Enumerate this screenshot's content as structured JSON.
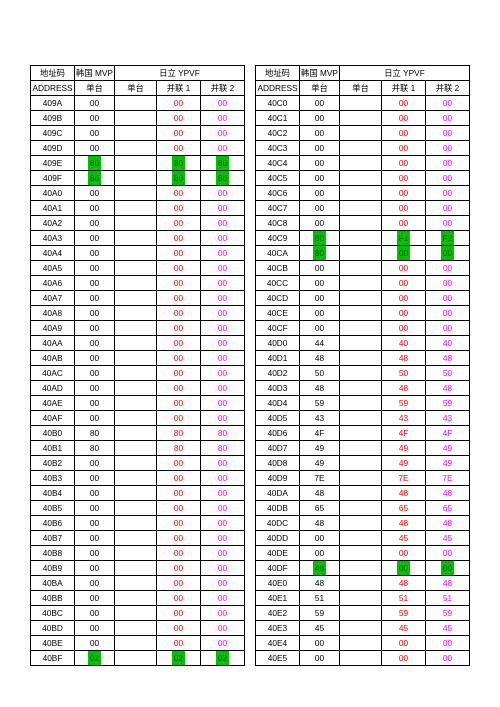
{
  "header": {
    "addr_code": "地址码",
    "address": "ADDRESS",
    "mvp_brand": "韩国 MVP",
    "mvp_col": "单台",
    "ypvf_brand": "日立 YPVF",
    "ypvf_col1": "单台",
    "ypvf_col2": "并联 1",
    "ypvf_col3": "并联 2"
  },
  "colors": {
    "red": "#ff0000",
    "magenta": "#ff00ff",
    "green_bg": "#00c000",
    "green_text": "#006000"
  },
  "left": [
    {
      "addr": "409A",
      "mvp": "00",
      "b1": {
        "t": "00",
        "c": "red"
      },
      "b2": {
        "t": "00",
        "c": "magenta"
      }
    },
    {
      "addr": "409B",
      "mvp": "00",
      "b1": {
        "t": "00",
        "c": "red"
      },
      "b2": {
        "t": "00",
        "c": "magenta"
      }
    },
    {
      "addr": "409C",
      "mvp": "00",
      "b1": {
        "t": "00",
        "c": "red"
      },
      "b2": {
        "t": "00",
        "c": "magenta"
      }
    },
    {
      "addr": "409D",
      "mvp": "00",
      "b1": {
        "t": "00",
        "c": "red"
      },
      "b2": {
        "t": "00",
        "c": "magenta"
      }
    },
    {
      "addr": "409E",
      "mvp": "80",
      "mvp_hl": true,
      "b1": {
        "t": "80",
        "hl": true
      },
      "b2": {
        "t": "80",
        "hl": true
      }
    },
    {
      "addr": "409F",
      "mvp": "80",
      "mvp_hl": true,
      "b1": {
        "t": "80",
        "hl": true
      },
      "b2": {
        "t": "80",
        "hl": true
      }
    },
    {
      "addr": "40A0",
      "mvp": "00",
      "b1": {
        "t": "00",
        "c": "red"
      },
      "b2": {
        "t": "00",
        "c": "magenta"
      }
    },
    {
      "addr": "40A1",
      "mvp": "00",
      "b1": {
        "t": "00",
        "c": "red"
      },
      "b2": {
        "t": "00",
        "c": "magenta"
      }
    },
    {
      "addr": "40A2",
      "mvp": "00",
      "b1": {
        "t": "00",
        "c": "red"
      },
      "b2": {
        "t": "00",
        "c": "magenta"
      }
    },
    {
      "addr": "40A3",
      "mvp": "00",
      "b1": {
        "t": "00",
        "c": "red"
      },
      "b2": {
        "t": "00",
        "c": "magenta"
      }
    },
    {
      "addr": "40A4",
      "mvp": "00",
      "b1": {
        "t": "00",
        "c": "red"
      },
      "b2": {
        "t": "00",
        "c": "magenta"
      }
    },
    {
      "addr": "40A5",
      "mvp": "00",
      "b1": {
        "t": "00",
        "c": "red"
      },
      "b2": {
        "t": "00",
        "c": "magenta"
      }
    },
    {
      "addr": "40A6",
      "mvp": "00",
      "b1": {
        "t": "00",
        "c": "red"
      },
      "b2": {
        "t": "00",
        "c": "magenta"
      }
    },
    {
      "addr": "40A7",
      "mvp": "00",
      "b1": {
        "t": "00",
        "c": "red"
      },
      "b2": {
        "t": "00",
        "c": "magenta"
      }
    },
    {
      "addr": "40A8",
      "mvp": "00",
      "b1": {
        "t": "00",
        "c": "red"
      },
      "b2": {
        "t": "00",
        "c": "magenta"
      }
    },
    {
      "addr": "40A9",
      "mvp": "00",
      "b1": {
        "t": "00",
        "c": "red"
      },
      "b2": {
        "t": "00",
        "c": "magenta"
      }
    },
    {
      "addr": "40AA",
      "mvp": "00",
      "b1": {
        "t": "00",
        "c": "red"
      },
      "b2": {
        "t": "00",
        "c": "magenta"
      }
    },
    {
      "addr": "40AB",
      "mvp": "00",
      "b1": {
        "t": "00",
        "c": "red"
      },
      "b2": {
        "t": "00",
        "c": "magenta"
      }
    },
    {
      "addr": "40AC",
      "mvp": "00",
      "b1": {
        "t": "00",
        "c": "red"
      },
      "b2": {
        "t": "00",
        "c": "magenta"
      }
    },
    {
      "addr": "40AD",
      "mvp": "00",
      "b1": {
        "t": "00",
        "c": "red"
      },
      "b2": {
        "t": "00",
        "c": "magenta"
      }
    },
    {
      "addr": "40AE",
      "mvp": "00",
      "b1": {
        "t": "00",
        "c": "red"
      },
      "b2": {
        "t": "00",
        "c": "magenta"
      }
    },
    {
      "addr": "40AF",
      "mvp": "00",
      "b1": {
        "t": "00",
        "c": "red"
      },
      "b2": {
        "t": "00",
        "c": "magenta"
      }
    },
    {
      "addr": "40B0",
      "mvp": "80",
      "b1": {
        "t": "80",
        "c": "red"
      },
      "b2": {
        "t": "80",
        "c": "magenta"
      }
    },
    {
      "addr": "40B1",
      "mvp": "80",
      "b1": {
        "t": "80",
        "c": "red"
      },
      "b2": {
        "t": "80",
        "c": "magenta"
      }
    },
    {
      "addr": "40B2",
      "mvp": "00",
      "b1": {
        "t": "00",
        "c": "red"
      },
      "b2": {
        "t": "00",
        "c": "magenta"
      }
    },
    {
      "addr": "40B3",
      "mvp": "00",
      "b1": {
        "t": "00",
        "c": "red"
      },
      "b2": {
        "t": "00",
        "c": "magenta"
      }
    },
    {
      "addr": "40B4",
      "mvp": "00",
      "b1": {
        "t": "00",
        "c": "red"
      },
      "b2": {
        "t": "00",
        "c": "magenta"
      }
    },
    {
      "addr": "40B5",
      "mvp": "00",
      "b1": {
        "t": "00",
        "c": "red"
      },
      "b2": {
        "t": "00",
        "c": "magenta"
      }
    },
    {
      "addr": "40B6",
      "mvp": "00",
      "b1": {
        "t": "00",
        "c": "red"
      },
      "b2": {
        "t": "00",
        "c": "magenta"
      }
    },
    {
      "addr": "40B7",
      "mvp": "00",
      "b1": {
        "t": "00",
        "c": "red"
      },
      "b2": {
        "t": "00",
        "c": "magenta"
      }
    },
    {
      "addr": "40B8",
      "mvp": "00",
      "b1": {
        "t": "00",
        "c": "red"
      },
      "b2": {
        "t": "00",
        "c": "magenta"
      }
    },
    {
      "addr": "40B9",
      "mvp": "00",
      "b1": {
        "t": "00",
        "c": "red"
      },
      "b2": {
        "t": "00",
        "c": "magenta"
      }
    },
    {
      "addr": "40BA",
      "mvp": "00",
      "b1": {
        "t": "00",
        "c": "red"
      },
      "b2": {
        "t": "00",
        "c": "magenta"
      }
    },
    {
      "addr": "40BB",
      "mvp": "00",
      "b1": {
        "t": "00",
        "c": "red"
      },
      "b2": {
        "t": "00",
        "c": "magenta"
      }
    },
    {
      "addr": "40BC",
      "mvp": "00",
      "b1": {
        "t": "00",
        "c": "red"
      },
      "b2": {
        "t": "00",
        "c": "magenta"
      }
    },
    {
      "addr": "40BD",
      "mvp": "00",
      "b1": {
        "t": "00",
        "c": "red"
      },
      "b2": {
        "t": "00",
        "c": "magenta"
      }
    },
    {
      "addr": "40BE",
      "mvp": "00",
      "b1": {
        "t": "00",
        "c": "red"
      },
      "b2": {
        "t": "00",
        "c": "magenta"
      }
    },
    {
      "addr": "40BF",
      "mvp": "02",
      "mvp_hl": true,
      "b1": {
        "t": "02",
        "hl": true
      },
      "b2": {
        "t": "02",
        "hl": true
      }
    }
  ],
  "right": [
    {
      "addr": "40C0",
      "mvp": "00",
      "b1": {
        "t": "00",
        "c": "red"
      },
      "b2": {
        "t": "00",
        "c": "magenta"
      }
    },
    {
      "addr": "40C1",
      "mvp": "00",
      "b1": {
        "t": "00",
        "c": "red"
      },
      "b2": {
        "t": "00",
        "c": "magenta"
      }
    },
    {
      "addr": "40C2",
      "mvp": "00",
      "b1": {
        "t": "00",
        "c": "red"
      },
      "b2": {
        "t": "00",
        "c": "magenta"
      }
    },
    {
      "addr": "40C3",
      "mvp": "00",
      "b1": {
        "t": "00",
        "c": "red"
      },
      "b2": {
        "t": "00",
        "c": "magenta"
      }
    },
    {
      "addr": "40C4",
      "mvp": "00",
      "b1": {
        "t": "00",
        "c": "red"
      },
      "b2": {
        "t": "00",
        "c": "magenta"
      }
    },
    {
      "addr": "40C5",
      "mvp": "00",
      "b1": {
        "t": "00",
        "c": "red"
      },
      "b2": {
        "t": "00",
        "c": "magenta"
      }
    },
    {
      "addr": "40C6",
      "mvp": "00",
      "b1": {
        "t": "00",
        "c": "red"
      },
      "b2": {
        "t": "00",
        "c": "magenta"
      }
    },
    {
      "addr": "40C7",
      "mvp": "00",
      "b1": {
        "t": "00",
        "c": "red"
      },
      "b2": {
        "t": "00",
        "c": "magenta"
      }
    },
    {
      "addr": "40C8",
      "mvp": "00",
      "b1": {
        "t": "00",
        "c": "red"
      },
      "b2": {
        "t": "00",
        "c": "magenta"
      }
    },
    {
      "addr": "40C9",
      "mvp": "80",
      "mvp_hl": true,
      "b1": {
        "t": "F1",
        "hl": true
      },
      "b2": {
        "t": "F2",
        "hl": true
      }
    },
    {
      "addr": "40CA",
      "mvp": "80",
      "mvp_hl": true,
      "b1": {
        "t": "00",
        "hl": true
      },
      "b2": {
        "t": "00",
        "hl": true
      }
    },
    {
      "addr": "40CB",
      "mvp": "00",
      "b1": {
        "t": "00",
        "c": "red"
      },
      "b2": {
        "t": "00",
        "c": "magenta"
      }
    },
    {
      "addr": "40CC",
      "mvp": "00",
      "b1": {
        "t": "00",
        "c": "red"
      },
      "b2": {
        "t": "00",
        "c": "magenta"
      }
    },
    {
      "addr": "40CD",
      "mvp": "00",
      "b1": {
        "t": "00",
        "c": "red"
      },
      "b2": {
        "t": "00",
        "c": "magenta"
      }
    },
    {
      "addr": "40CE",
      "mvp": "00",
      "b1": {
        "t": "00",
        "c": "red"
      },
      "b2": {
        "t": "00",
        "c": "magenta"
      }
    },
    {
      "addr": "40CF",
      "mvp": "00",
      "b1": {
        "t": "00",
        "c": "red"
      },
      "b2": {
        "t": "00",
        "c": "magenta"
      }
    },
    {
      "addr": "40D0",
      "mvp": "44",
      "b1": {
        "t": "40",
        "c": "red"
      },
      "b2": {
        "t": "40",
        "c": "magenta"
      }
    },
    {
      "addr": "40D1",
      "mvp": "48",
      "b1": {
        "t": "48",
        "c": "red"
      },
      "b2": {
        "t": "48",
        "c": "magenta"
      }
    },
    {
      "addr": "40D2",
      "mvp": "50",
      "b1": {
        "t": "50",
        "c": "red"
      },
      "b2": {
        "t": "50",
        "c": "magenta"
      }
    },
    {
      "addr": "40D3",
      "mvp": "48",
      "b1": {
        "t": "48",
        "c": "red"
      },
      "b2": {
        "t": "48",
        "c": "magenta"
      }
    },
    {
      "addr": "40D4",
      "mvp": "59",
      "b1": {
        "t": "59",
        "c": "red"
      },
      "b2": {
        "t": "59",
        "c": "magenta"
      }
    },
    {
      "addr": "40D5",
      "mvp": "43",
      "b1": {
        "t": "43",
        "c": "red"
      },
      "b2": {
        "t": "43",
        "c": "magenta"
      }
    },
    {
      "addr": "40D6",
      "mvp": "4F",
      "b1": {
        "t": "4F",
        "c": "red"
      },
      "b2": {
        "t": "4F",
        "c": "magenta"
      }
    },
    {
      "addr": "40D7",
      "mvp": "49",
      "b1": {
        "t": "49",
        "c": "red"
      },
      "b2": {
        "t": "49",
        "c": "magenta"
      }
    },
    {
      "addr": "40D8",
      "mvp": "49",
      "b1": {
        "t": "49",
        "c": "red"
      },
      "b2": {
        "t": "49",
        "c": "magenta"
      }
    },
    {
      "addr": "40D9",
      "mvp": "7E",
      "b1": {
        "t": "7E",
        "c": "red"
      },
      "b2": {
        "t": "7E",
        "c": "magenta"
      }
    },
    {
      "addr": "40DA",
      "mvp": "48",
      "b1": {
        "t": "48",
        "c": "red"
      },
      "b2": {
        "t": "48",
        "c": "magenta"
      }
    },
    {
      "addr": "40DB",
      "mvp": "65",
      "b1": {
        "t": "65",
        "c": "red"
      },
      "b2": {
        "t": "65",
        "c": "magenta"
      }
    },
    {
      "addr": "40DC",
      "mvp": "48",
      "b1": {
        "t": "48",
        "c": "red"
      },
      "b2": {
        "t": "48",
        "c": "magenta"
      }
    },
    {
      "addr": "40DD",
      "mvp": "00",
      "b1": {
        "t": "45",
        "c": "red"
      },
      "b2": {
        "t": "45",
        "c": "magenta"
      }
    },
    {
      "addr": "40DE",
      "mvp": "00",
      "b1": {
        "t": "00",
        "c": "red"
      },
      "b2": {
        "t": "00",
        "c": "magenta"
      }
    },
    {
      "addr": "40DF",
      "mvp": "48",
      "mvp_hl": true,
      "b1": {
        "t": "00",
        "hl": true
      },
      "b2": {
        "t": "00",
        "hl": true
      }
    },
    {
      "addr": "40E0",
      "mvp": "48",
      "b1": {
        "t": "48",
        "c": "red"
      },
      "b2": {
        "t": "48",
        "c": "magenta"
      }
    },
    {
      "addr": "40E1",
      "mvp": "51",
      "b1": {
        "t": "51",
        "c": "red"
      },
      "b2": {
        "t": "51",
        "c": "magenta"
      }
    },
    {
      "addr": "40E2",
      "mvp": "59",
      "b1": {
        "t": "59",
        "c": "red"
      },
      "b2": {
        "t": "59",
        "c": "magenta"
      }
    },
    {
      "addr": "40E3",
      "mvp": "45",
      "b1": {
        "t": "45",
        "c": "red"
      },
      "b2": {
        "t": "45",
        "c": "magenta"
      }
    },
    {
      "addr": "40E4",
      "mvp": "00",
      "b1": {
        "t": "00",
        "c": "red"
      },
      "b2": {
        "t": "00",
        "c": "magenta"
      }
    },
    {
      "addr": "40E5",
      "mvp": "00",
      "b1": {
        "t": "00",
        "c": "red"
      },
      "b2": {
        "t": "00",
        "c": "magenta"
      }
    }
  ]
}
